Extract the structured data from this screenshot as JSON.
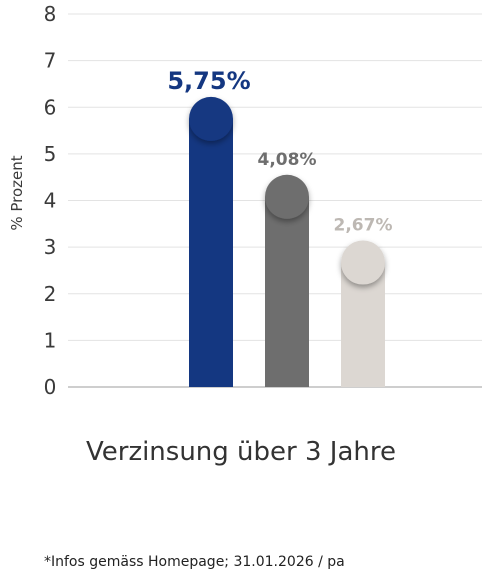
{
  "chart_data": {
    "type": "bar",
    "categories": [
      "",
      "",
      ""
    ],
    "values": [
      5.75,
      4.08,
      2.67
    ],
    "data_labels": [
      "5,75%",
      "4,08%",
      "2,67%"
    ],
    "bar_colors": [
      "#143781",
      "#6e6e6e",
      "#dcd7d2"
    ],
    "label_colors": [
      "#143781",
      "#6e6e6e",
      "#bdb8b3"
    ],
    "ylabel": "% Prozent",
    "xlabel": "Verzinsung über 3 Jahre",
    "ylim": [
      0,
      8
    ],
    "yticks": [
      0,
      1,
      2,
      3,
      4,
      5,
      6,
      7,
      8
    ],
    "grid": true
  },
  "footnote": "*Infos gemäss Homepage; 31.01.2026 / pa"
}
